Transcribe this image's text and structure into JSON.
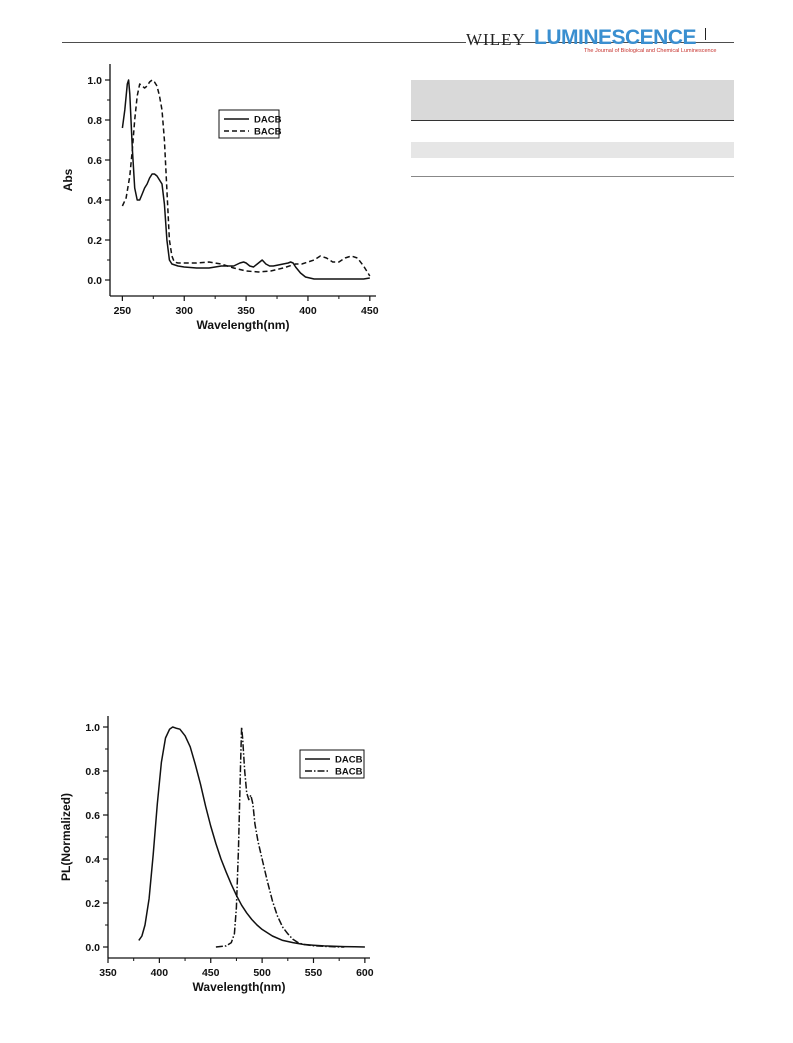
{
  "header": {
    "publisher": "WILEY",
    "journal": "LUMINESCENCE",
    "tagline": "The Journal of Biological and Chemical Luminescence"
  },
  "chart_data": [
    {
      "type": "line",
      "xlabel": "Wavelength(nm)",
      "ylabel": "Abs",
      "xlim": [
        240,
        455
      ],
      "ylim": [
        -0.08,
        1.08
      ],
      "xticks": [
        250,
        300,
        350,
        400,
        450
      ],
      "yticks": [
        0.0,
        0.2,
        0.4,
        0.6,
        0.8,
        1.0
      ],
      "grid": false,
      "legend": "top-right",
      "series": [
        {
          "name": "DACB",
          "style": "solid",
          "x": [
            250,
            252,
            254,
            255,
            256,
            258,
            260,
            262,
            264,
            266,
            268,
            270,
            272,
            274,
            276,
            278,
            280,
            282,
            284,
            286,
            288,
            290,
            295,
            300,
            310,
            320,
            325,
            330,
            335,
            340,
            345,
            348,
            350,
            353,
            356,
            360,
            363,
            366,
            369,
            372,
            376,
            380,
            384,
            386,
            388,
            390,
            394,
            398,
            405,
            415,
            425,
            435,
            445,
            450
          ],
          "y": [
            0.76,
            0.85,
            0.98,
            1.0,
            0.93,
            0.66,
            0.46,
            0.4,
            0.4,
            0.43,
            0.46,
            0.48,
            0.51,
            0.53,
            0.53,
            0.52,
            0.5,
            0.48,
            0.38,
            0.2,
            0.1,
            0.08,
            0.07,
            0.065,
            0.06,
            0.06,
            0.065,
            0.07,
            0.07,
            0.07,
            0.085,
            0.09,
            0.085,
            0.07,
            0.065,
            0.085,
            0.1,
            0.08,
            0.07,
            0.07,
            0.075,
            0.08,
            0.085,
            0.09,
            0.085,
            0.065,
            0.035,
            0.015,
            0.005,
            0.005,
            0.005,
            0.005,
            0.005,
            0.01
          ]
        },
        {
          "name": "BACB",
          "style": "dashed",
          "x": [
            250,
            253,
            256,
            258,
            260,
            262,
            264,
            266,
            268,
            270,
            272,
            274,
            276,
            278,
            280,
            282,
            284,
            286,
            288,
            290,
            292,
            295,
            300,
            310,
            320,
            330,
            340,
            350,
            360,
            370,
            380,
            390,
            395,
            400,
            405,
            410,
            415,
            420,
            425,
            430,
            435,
            440,
            445,
            450
          ],
          "y": [
            0.37,
            0.41,
            0.52,
            0.65,
            0.8,
            0.92,
            0.98,
            0.97,
            0.96,
            0.97,
            0.99,
            1.0,
            0.99,
            0.97,
            0.92,
            0.85,
            0.7,
            0.45,
            0.2,
            0.12,
            0.09,
            0.085,
            0.085,
            0.085,
            0.09,
            0.08,
            0.06,
            0.045,
            0.04,
            0.045,
            0.06,
            0.08,
            0.08,
            0.09,
            0.1,
            0.12,
            0.11,
            0.09,
            0.09,
            0.11,
            0.12,
            0.11,
            0.07,
            0.02
          ]
        }
      ]
    },
    {
      "type": "line",
      "xlabel": "Wavelength(nm)",
      "ylabel": "PL(Normalized)",
      "xlim": [
        350,
        605
      ],
      "ylim": [
        -0.05,
        1.05
      ],
      "xticks": [
        350,
        400,
        450,
        500,
        550,
        600
      ],
      "yticks": [
        0.0,
        0.2,
        0.4,
        0.6,
        0.8,
        1.0
      ],
      "grid": false,
      "legend": "top-right",
      "series": [
        {
          "name": "DACB",
          "style": "solid",
          "x": [
            380,
            383,
            386,
            390,
            394,
            398,
            402,
            406,
            410,
            413,
            416,
            420,
            425,
            430,
            435,
            440,
            445,
            450,
            455,
            460,
            465,
            470,
            475,
            480,
            485,
            490,
            495,
            500,
            510,
            520,
            530,
            540,
            550,
            560,
            570,
            580,
            590,
            600
          ],
          "y": [
            0.03,
            0.05,
            0.1,
            0.22,
            0.42,
            0.65,
            0.84,
            0.95,
            0.99,
            1.0,
            0.995,
            0.99,
            0.96,
            0.91,
            0.83,
            0.74,
            0.64,
            0.55,
            0.47,
            0.4,
            0.34,
            0.285,
            0.235,
            0.19,
            0.155,
            0.125,
            0.1,
            0.08,
            0.05,
            0.03,
            0.02,
            0.012,
            0.008,
            0.005,
            0.003,
            0.002,
            0.001,
            0.0
          ]
        },
        {
          "name": "BACB",
          "style": "dash-dot",
          "x": [
            455,
            465,
            470,
            473,
            475,
            477,
            479,
            480,
            481,
            483,
            485,
            487,
            489,
            491,
            493,
            496,
            500,
            505,
            510,
            515,
            520,
            525,
            530,
            535,
            540,
            550,
            560,
            570,
            580
          ],
          "y": [
            0.0,
            0.005,
            0.02,
            0.06,
            0.18,
            0.45,
            0.82,
            1.0,
            0.95,
            0.8,
            0.7,
            0.67,
            0.69,
            0.65,
            0.56,
            0.48,
            0.4,
            0.3,
            0.21,
            0.14,
            0.09,
            0.06,
            0.035,
            0.02,
            0.012,
            0.006,
            0.003,
            0.001,
            0.0
          ]
        }
      ]
    }
  ]
}
